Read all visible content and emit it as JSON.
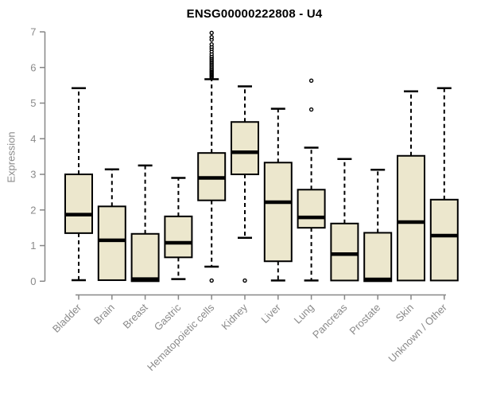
{
  "chart_data": {
    "type": "boxplot",
    "title": "ENSG00000222808 - U4",
    "ylabel": "Expression",
    "xlabel": "",
    "ylim": [
      0,
      7
    ],
    "yticks": [
      0,
      1,
      2,
      3,
      4,
      5,
      6,
      7
    ],
    "grid": false,
    "legend": false,
    "categories": [
      "Bladder",
      "Brain",
      "Breast",
      "Gastric",
      "Hematopoietic cells",
      "Kidney",
      "Liver",
      "Lung",
      "Pancreas",
      "Prostate",
      "Skin",
      "Unknown / Other"
    ],
    "series": [
      {
        "label": "Bladder",
        "min": 0.03,
        "q1": 1.35,
        "median": 1.87,
        "q3": 3.0,
        "max": 5.42,
        "outliers": []
      },
      {
        "label": "Brain",
        "min": 0.03,
        "q1": 0.03,
        "median": 1.15,
        "q3": 2.1,
        "max": 3.14,
        "outliers": []
      },
      {
        "label": "Breast",
        "min": 0.0,
        "q1": 0.0,
        "median": 0.06,
        "q3": 1.33,
        "max": 3.25,
        "outliers": []
      },
      {
        "label": "Gastric",
        "min": 0.06,
        "q1": 0.67,
        "median": 1.08,
        "q3": 1.82,
        "max": 2.9,
        "outliers": []
      },
      {
        "label": "Hematopoietic cells",
        "min": 0.41,
        "q1": 2.27,
        "median": 2.9,
        "q3": 3.6,
        "max": 5.67,
        "outliers": [
          0.02,
          5.72,
          5.75,
          5.78,
          5.81,
          5.84,
          5.87,
          5.9,
          5.93,
          5.96,
          6.0,
          6.04,
          6.08,
          6.12,
          6.16,
          6.2,
          6.24,
          6.28,
          6.32,
          6.38,
          6.45,
          6.52,
          6.58,
          6.65,
          6.78,
          6.85,
          6.97
        ]
      },
      {
        "label": "Kidney",
        "min": 1.22,
        "q1": 3.0,
        "median": 3.62,
        "q3": 4.47,
        "max": 5.47,
        "outliers": [
          0.02
        ]
      },
      {
        "label": "Liver",
        "min": 0.02,
        "q1": 0.56,
        "median": 2.22,
        "q3": 3.33,
        "max": 4.84,
        "outliers": []
      },
      {
        "label": "Lung",
        "min": 0.02,
        "q1": 1.5,
        "median": 1.79,
        "q3": 2.57,
        "max": 3.75,
        "outliers": [
          4.82,
          5.63
        ]
      },
      {
        "label": "Pancreas",
        "min": 0.02,
        "q1": 0.02,
        "median": 0.76,
        "q3": 1.62,
        "max": 3.43,
        "outliers": []
      },
      {
        "label": "Prostate",
        "min": 0.0,
        "q1": 0.0,
        "median": 0.05,
        "q3": 1.36,
        "max": 3.13,
        "outliers": []
      },
      {
        "label": "Skin",
        "min": 0.02,
        "q1": 0.02,
        "median": 1.66,
        "q3": 3.52,
        "max": 5.33,
        "outliers": []
      },
      {
        "label": "Unknown / Other",
        "min": 0.02,
        "q1": 0.02,
        "median": 1.28,
        "q3": 2.29,
        "max": 5.42,
        "outliers": []
      }
    ],
    "colors": {
      "box_fill": "#ECE7CD",
      "box_stroke": "#000000",
      "median": "#000000",
      "whisker": "#000000",
      "outlier_stroke": "#000000",
      "outlier_fill": "#ffffff",
      "axis": "#878787",
      "tick_label": "#8a8a8a",
      "title": "#000000"
    }
  }
}
